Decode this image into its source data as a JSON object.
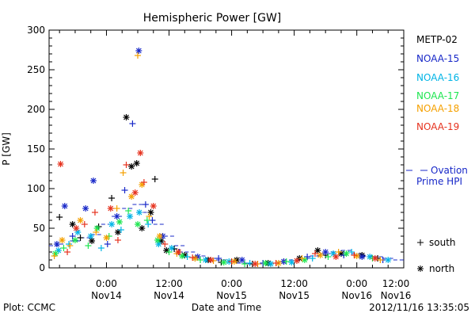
{
  "chart_data": {
    "type": "scatter",
    "title": "Hemispheric Power [GW]",
    "xlabel": "Date and Time",
    "ylabel": "P [GW]",
    "ylim": [
      0,
      300
    ],
    "xlim": [
      -11,
      57
    ],
    "x_units": "hours from 2012-11-14 00:00 UT",
    "yticks": [
      "0",
      "50",
      "100",
      "150",
      "200",
      "250",
      "300"
    ],
    "xticks": [
      {
        "x": 0,
        "time": "0:00",
        "date": "Nov14"
      },
      {
        "x": 12,
        "time": "12:00",
        "date": "Nov14"
      },
      {
        "x": 24,
        "time": "0:00",
        "date": "Nov15"
      },
      {
        "x": 36,
        "time": "12:00",
        "date": "Nov15"
      },
      {
        "x": 48,
        "time": "0:00",
        "date": "Nov16"
      },
      {
        "x": 60,
        "time": "12:00",
        "date": "Nov16"
      }
    ],
    "legend": {
      "placement": "right",
      "series_labels": [
        "METP-02",
        "NOAA-15",
        "NOAA-16",
        "NOAA-17",
        "NOAA-18",
        "NOAA-19"
      ],
      "ovation_label_line1": "Ovation",
      "ovation_label_line2": "Prime HPI",
      "south_label": "south",
      "north_label": "north"
    },
    "series": [
      {
        "name": "METP-02",
        "color": "#000000",
        "points": [
          [
            -9.0,
            64,
            "s"
          ],
          [
            -6.5,
            55,
            "n"
          ],
          [
            -5.0,
            38,
            "s"
          ],
          [
            -2.8,
            34,
            "n"
          ],
          [
            -1.5,
            52,
            "s"
          ],
          [
            1.0,
            88,
            "s"
          ],
          [
            2.2,
            45,
            "n"
          ],
          [
            3.8,
            190,
            "n"
          ],
          [
            4.8,
            128,
            "n"
          ],
          [
            5.8,
            132,
            "n"
          ],
          [
            6.8,
            50,
            "n"
          ],
          [
            8.5,
            70,
            "n"
          ],
          [
            9.3,
            112,
            "s"
          ],
          [
            10.5,
            34,
            "n"
          ],
          [
            11.5,
            22,
            "n"
          ],
          [
            13.0,
            24,
            "s"
          ],
          [
            15.0,
            16,
            "n"
          ],
          [
            17.0,
            12,
            "s"
          ],
          [
            19.5,
            10,
            "n"
          ],
          [
            22.0,
            7,
            "s"
          ],
          [
            25.0,
            10,
            "n"
          ],
          [
            28.0,
            5,
            "s"
          ],
          [
            31.0,
            6,
            "n"
          ],
          [
            34.0,
            8,
            "s"
          ],
          [
            37.0,
            12,
            "n"
          ],
          [
            40.5,
            22,
            "n"
          ],
          [
            42.0,
            16,
            "s"
          ],
          [
            45.0,
            18,
            "n"
          ],
          [
            49.0,
            16,
            "n"
          ],
          [
            52.0,
            12,
            "s"
          ]
        ]
      },
      {
        "name": "NOAA-15",
        "color": "#1828c8",
        "points": [
          [
            -9.5,
            30,
            "n"
          ],
          [
            -8.0,
            78,
            "n"
          ],
          [
            -6.5,
            40,
            "s"
          ],
          [
            -4.0,
            75,
            "n"
          ],
          [
            -2.5,
            110,
            "n"
          ],
          [
            0.2,
            30,
            "s"
          ],
          [
            2.0,
            65,
            "n"
          ],
          [
            3.5,
            98,
            "s"
          ],
          [
            5.0,
            182,
            "s"
          ],
          [
            6.2,
            274,
            "n"
          ],
          [
            7.5,
            80,
            "s"
          ],
          [
            8.8,
            60,
            "s"
          ],
          [
            10.8,
            40,
            "n"
          ],
          [
            14.0,
            20,
            "s"
          ],
          [
            17.5,
            14,
            "n"
          ],
          [
            21.5,
            12,
            "s"
          ],
          [
            26.0,
            10,
            "n"
          ],
          [
            30.0,
            6,
            "s"
          ],
          [
            34.0,
            8,
            "n"
          ],
          [
            38.5,
            14,
            "s"
          ],
          [
            42.0,
            20,
            "n"
          ],
          [
            45.5,
            16,
            "s"
          ],
          [
            49.0,
            14,
            "n"
          ],
          [
            53.0,
            10,
            "s"
          ]
        ]
      },
      {
        "name": "NOAA-16",
        "color": "#00b4e6",
        "points": [
          [
            -9.2,
            22,
            "n"
          ],
          [
            -7.2,
            30,
            "s"
          ],
          [
            -5.5,
            45,
            "n"
          ],
          [
            -3.0,
            40,
            "n"
          ],
          [
            -1.0,
            25,
            "s"
          ],
          [
            1.0,
            55,
            "n"
          ],
          [
            2.8,
            48,
            "s"
          ],
          [
            4.5,
            65,
            "n"
          ],
          [
            6.3,
            70,
            "n"
          ],
          [
            8.0,
            55,
            "s"
          ],
          [
            10.0,
            30,
            "n"
          ],
          [
            12.5,
            25,
            "n"
          ],
          [
            15.5,
            14,
            "s"
          ],
          [
            19.0,
            10,
            "n"
          ],
          [
            23.5,
            8,
            "n"
          ],
          [
            27.5,
            6,
            "s"
          ],
          [
            31.5,
            5,
            "n"
          ],
          [
            35.5,
            7,
            "n"
          ],
          [
            39.5,
            12,
            "s"
          ],
          [
            43.5,
            18,
            "n"
          ],
          [
            47.0,
            20,
            "s"
          ],
          [
            50.5,
            14,
            "n"
          ],
          [
            54.0,
            10,
            "n"
          ]
        ]
      },
      {
        "name": "NOAA-17",
        "color": "#1ee650",
        "points": [
          [
            -9.8,
            18,
            "n"
          ],
          [
            -8.2,
            25,
            "s"
          ],
          [
            -6.0,
            35,
            "n"
          ],
          [
            -3.5,
            28,
            "s"
          ],
          [
            -1.8,
            50,
            "n"
          ],
          [
            0.5,
            40,
            "s"
          ],
          [
            2.5,
            58,
            "n"
          ],
          [
            4.2,
            72,
            "s"
          ],
          [
            6.0,
            55,
            "n"
          ],
          [
            7.8,
            60,
            "s"
          ],
          [
            9.8,
            35,
            "n"
          ],
          [
            12.0,
            20,
            "s"
          ],
          [
            14.5,
            15,
            "n"
          ],
          [
            18.0,
            10,
            "s"
          ],
          [
            22.5,
            7,
            "n"
          ],
          [
            26.5,
            5,
            "s"
          ],
          [
            30.5,
            6,
            "n"
          ],
          [
            34.5,
            8,
            "s"
          ],
          [
            38.0,
            10,
            "n"
          ],
          [
            42.5,
            14,
            "s"
          ],
          [
            46.0,
            18,
            "n"
          ],
          [
            51.0,
            12,
            "s"
          ]
        ]
      },
      {
        "name": "NOAA-18",
        "color": "#f5a000",
        "points": [
          [
            -10.0,
            15,
            "s"
          ],
          [
            -8.5,
            35,
            "n"
          ],
          [
            -7.0,
            28,
            "s"
          ],
          [
            -5.0,
            60,
            "n"
          ],
          [
            -2.0,
            45,
            "s"
          ],
          [
            0.0,
            38,
            "n"
          ],
          [
            2.0,
            75,
            "s"
          ],
          [
            3.2,
            120,
            "s"
          ],
          [
            4.8,
            90,
            "n"
          ],
          [
            6.0,
            268,
            "s"
          ],
          [
            6.8,
            105,
            "n"
          ],
          [
            8.2,
            65,
            "s"
          ],
          [
            10.2,
            40,
            "n"
          ],
          [
            13.5,
            18,
            "s"
          ],
          [
            17.0,
            12,
            "n"
          ],
          [
            20.5,
            9,
            "s"
          ],
          [
            24.5,
            8,
            "n"
          ],
          [
            29.0,
            5,
            "s"
          ],
          [
            33.0,
            6,
            "n"
          ],
          [
            37.5,
            12,
            "s"
          ],
          [
            41.0,
            16,
            "n"
          ],
          [
            44.5,
            20,
            "s"
          ],
          [
            48.0,
            15,
            "n"
          ],
          [
            52.5,
            10,
            "s"
          ]
        ]
      },
      {
        "name": "NOAA-19",
        "color": "#e6321e",
        "points": [
          [
            -8.8,
            131,
            "n"
          ],
          [
            -7.5,
            20,
            "s"
          ],
          [
            -5.8,
            50,
            "n"
          ],
          [
            -4.2,
            55,
            "s"
          ],
          [
            -2.2,
            70,
            "s"
          ],
          [
            0.8,
            75,
            "n"
          ],
          [
            2.2,
            35,
            "s"
          ],
          [
            3.8,
            130,
            "s"
          ],
          [
            5.5,
            95,
            "n"
          ],
          [
            6.5,
            145,
            "n"
          ],
          [
            7.2,
            108,
            "s"
          ],
          [
            9.0,
            78,
            "n"
          ],
          [
            11.2,
            30,
            "s"
          ],
          [
            13.8,
            20,
            "n"
          ],
          [
            16.5,
            13,
            "s"
          ],
          [
            20.0,
            10,
            "n"
          ],
          [
            24.0,
            8,
            "s"
          ],
          [
            28.5,
            5,
            "n"
          ],
          [
            32.5,
            6,
            "s"
          ],
          [
            36.5,
            9,
            "n"
          ],
          [
            40.0,
            18,
            "s"
          ],
          [
            44.0,
            14,
            "n"
          ],
          [
            47.5,
            16,
            "s"
          ],
          [
            51.5,
            12,
            "n"
          ]
        ]
      }
    ],
    "hpi_ovation": {
      "name": "Ovation Prime HPI",
      "color": "#1828c8",
      "x": [
        -11,
        -9,
        -7,
        -5,
        -3,
        -1,
        1,
        3,
        5,
        7,
        9,
        11,
        13,
        15,
        17,
        19,
        21,
        23,
        25,
        27,
        29,
        31,
        33,
        35,
        37,
        39,
        41,
        43,
        45,
        47,
        49,
        51,
        53,
        55,
        57
      ],
      "y": [
        28,
        30,
        34,
        38,
        42,
        55,
        65,
        75,
        80,
        70,
        55,
        40,
        28,
        20,
        15,
        12,
        10,
        8,
        6,
        5,
        5,
        6,
        8,
        10,
        12,
        15,
        18,
        20,
        22,
        18,
        15,
        14,
        12,
        10,
        8
      ]
    }
  },
  "footer": {
    "source": "Plot: CCMC",
    "timestamp": "2012/11/16 13:35:05"
  }
}
